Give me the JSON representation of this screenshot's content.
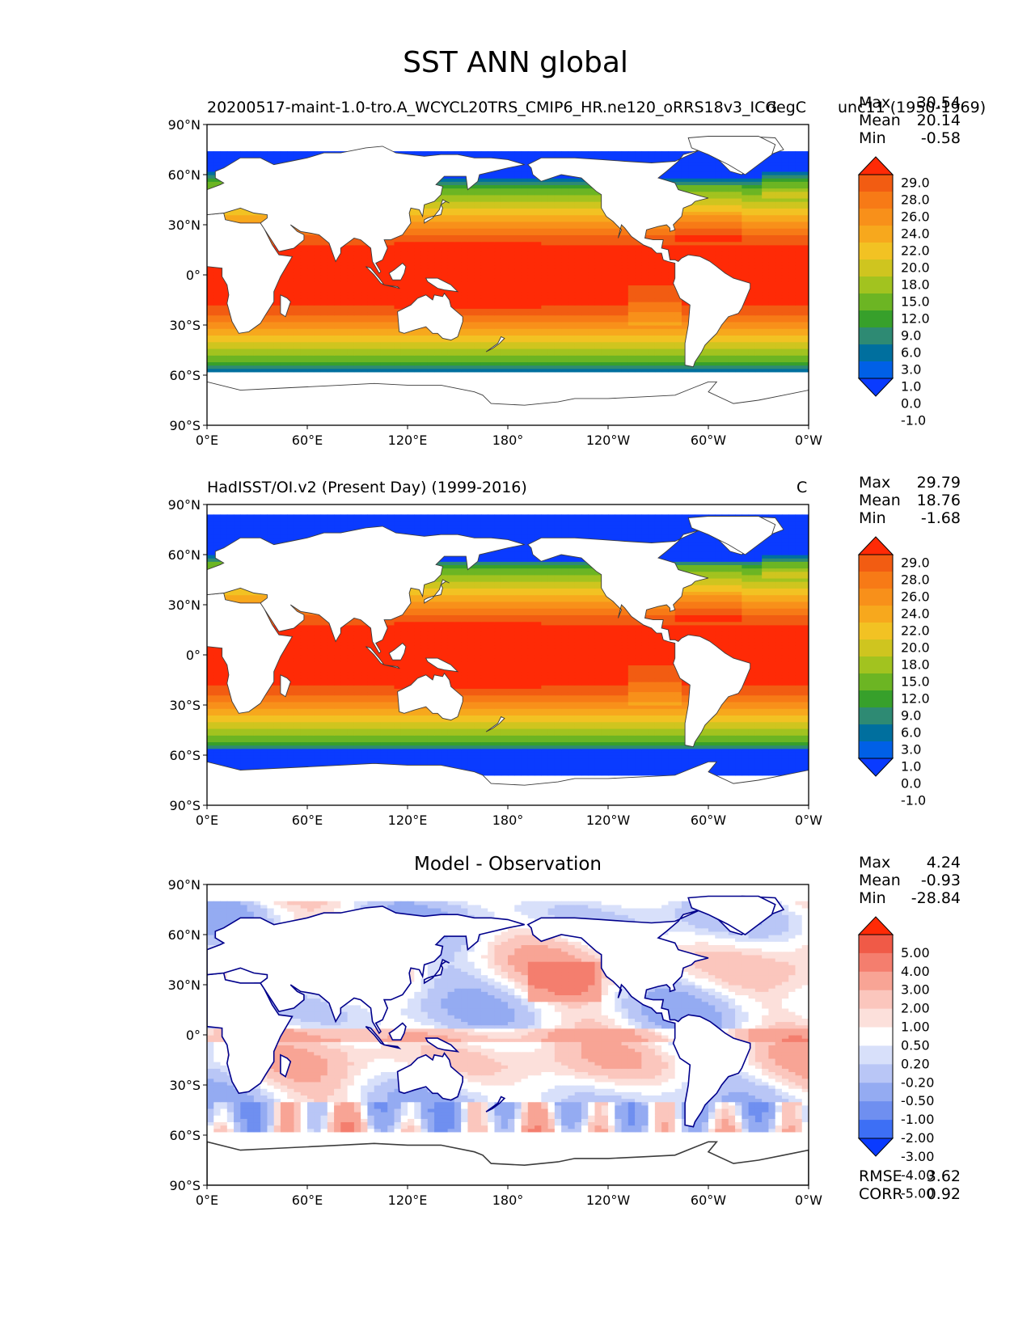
{
  "figure_title": "SST ANN global",
  "colors": {
    "sst_levels": [
      "#0a3bff",
      "#0060e6",
      "#006f9e",
      "#2e8a73",
      "#37a02b",
      "#6cb523",
      "#a2c31f",
      "#cfc51f",
      "#f2c223",
      "#f7a81d",
      "#f8901a",
      "#f77a16",
      "#f25c12",
      "#ff2a06"
    ],
    "diff_levels": [
      "#0a3bff",
      "#3d6ff5",
      "#6f8ff0",
      "#94abf2",
      "#b9c6f6",
      "#d8e0fa",
      "#ffffff",
      "#fce0db",
      "#fbc6bd",
      "#f8a495",
      "#f47e6e",
      "#f05a47",
      "#ff2a06"
    ],
    "land_edge": "#3c3c3c",
    "diff_coast": "#00008b"
  },
  "chart_data": [
    {
      "id": "model",
      "type": "heatmap",
      "title_left": "20200517-maint-1.0-tro.A_WCYCL20TRS_CMIP6_HR.ne120_oRRS18v3_ICG",
      "title_center": "",
      "title_right": "degC",
      "title_period": "unc11 (1950-1969)",
      "stats": [
        [
          "Max",
          "30.54"
        ],
        [
          "Mean",
          "20.14"
        ],
        [
          "Min",
          "-0.58"
        ]
      ],
      "colorbar_labels": [
        "29.0",
        "28.0",
        "26.0",
        "24.0",
        "22.0",
        "20.0",
        "18.0",
        "15.0",
        "12.0",
        "9.0",
        "6.0",
        "3.0",
        "1.0",
        "0.0",
        "-1.0"
      ],
      "colorbar_palette": "sst_levels",
      "xlabels": [
        "0°E",
        "60°E",
        "120°E",
        "180°",
        "120°W",
        "60°W",
        "0°W"
      ],
      "ylabels": [
        "90°N",
        "60°N",
        "30°N",
        "0°",
        "30°S",
        "60°S",
        "90°S"
      ],
      "xlim": [
        0,
        360
      ],
      "ylim": [
        -90,
        90
      ],
      "ice_edge_lat": {
        "south": -58,
        "north": 74
      },
      "extra": []
    },
    {
      "id": "obs",
      "type": "heatmap",
      "title_left": "HadISST/OI.v2 (Present Day) (1999-2016)",
      "title_center": "",
      "title_right": "C",
      "title_period": "",
      "stats": [
        [
          "Max",
          "29.79"
        ],
        [
          "Mean",
          "18.76"
        ],
        [
          "Min",
          "-1.68"
        ]
      ],
      "colorbar_labels": [
        "29.0",
        "28.0",
        "26.0",
        "24.0",
        "22.0",
        "20.0",
        "18.0",
        "15.0",
        "12.0",
        "9.0",
        "6.0",
        "3.0",
        "1.0",
        "0.0",
        "-1.0"
      ],
      "colorbar_palette": "sst_levels",
      "xlabels": [
        "0°E",
        "60°E",
        "120°E",
        "180°",
        "120°W",
        "60°W",
        "0°W"
      ],
      "ylabels": [
        "90°N",
        "60°N",
        "30°N",
        "0°",
        "30°S",
        "60°S",
        "90°S"
      ],
      "xlim": [
        0,
        360
      ],
      "ylim": [
        -90,
        90
      ],
      "ice_edge_lat": {
        "south": -72,
        "north": 84
      },
      "extra": []
    },
    {
      "id": "diff",
      "type": "heatmap",
      "title_left": "",
      "title_center": "Model - Observation",
      "title_right": "",
      "title_period": "",
      "stats": [
        [
          "Max",
          "4.24"
        ],
        [
          "Mean",
          "-0.93"
        ],
        [
          "Min",
          "-28.84"
        ]
      ],
      "colorbar_labels": [
        "5.00",
        "4.00",
        "3.00",
        "2.00",
        "1.00",
        "0.50",
        "0.20",
        "-0.20",
        "-0.50",
        "-1.00",
        "-2.00",
        "-3.00",
        "-4.00",
        "-5.00"
      ],
      "colorbar_palette": "diff_levels",
      "xlabels": [
        "0°E",
        "60°E",
        "120°E",
        "180°",
        "120°W",
        "60°W",
        "0°W"
      ],
      "ylabels": [
        "90°N",
        "60°N",
        "30°N",
        "0°",
        "30°S",
        "60°S",
        "90°S"
      ],
      "xlim": [
        0,
        360
      ],
      "ylim": [
        -90,
        90
      ],
      "ice_edge_lat": {
        "south": -58,
        "north": 80
      },
      "extra": [
        [
          "RMSE",
          "3.62"
        ],
        [
          "CORR",
          "0.92"
        ]
      ]
    }
  ]
}
